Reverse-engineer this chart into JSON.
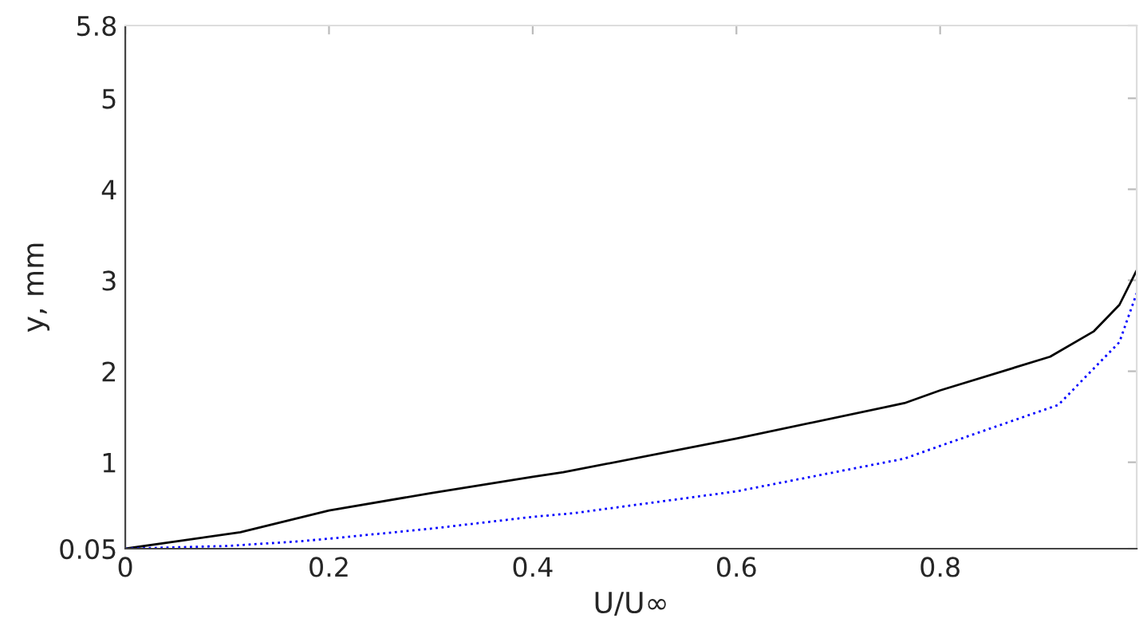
{
  "chart_data": {
    "type": "line",
    "xlabel": "U/U∞",
    "ylabel": "y, mm",
    "xlim": [
      0,
      0.993
    ],
    "ylim": [
      0.05,
      5.8
    ],
    "xticks": [
      0,
      0.2,
      0.4,
      0.6,
      0.8
    ],
    "yticks": [
      0.05,
      1,
      2,
      3,
      4,
      5,
      5.8
    ],
    "grid": false,
    "legend": false,
    "series": [
      {
        "color": "#000000",
        "line_style": "solid",
        "x": [
          0,
          0.113,
          0.2,
          0.3,
          0.4,
          0.43,
          0.6,
          0.765,
          0.8,
          0.908,
          0.951,
          0.976,
          0.993
        ],
        "values": [
          0.05,
          0.23,
          0.47,
          0.66,
          0.84,
          0.89,
          1.26,
          1.65,
          1.79,
          2.16,
          2.44,
          2.73,
          3.11
        ]
      },
      {
        "color": "#0000ff",
        "line_style": "dotted",
        "x": [
          0,
          0.1,
          0.17,
          0.2,
          0.3,
          0.4,
          0.44,
          0.6,
          0.765,
          0.8,
          0.916,
          0.976,
          0.993
        ],
        "values": [
          0.05,
          0.08,
          0.13,
          0.16,
          0.27,
          0.4,
          0.44,
          0.68,
          1.04,
          1.18,
          1.63,
          2.32,
          2.86
        ]
      }
    ]
  }
}
